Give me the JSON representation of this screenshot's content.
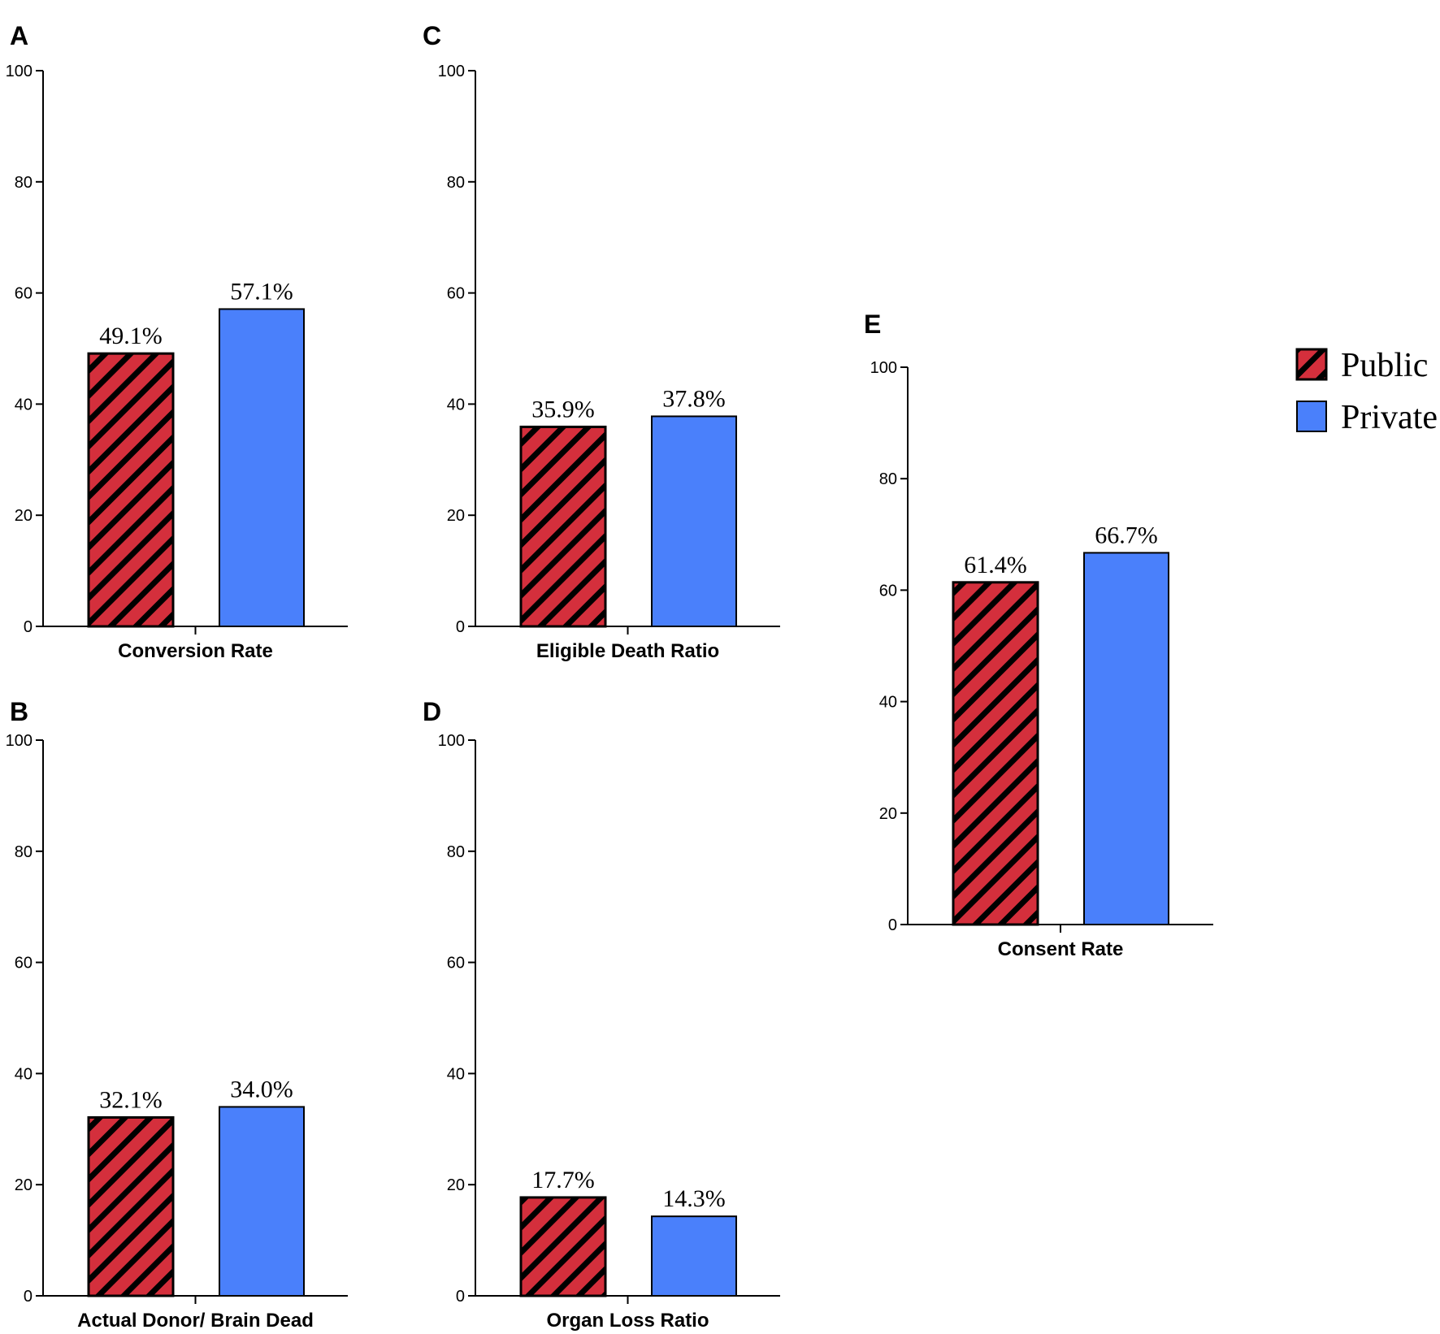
{
  "legend": {
    "items": [
      {
        "name": "Public",
        "pattern": "hatched",
        "color": "#d42f3c"
      },
      {
        "name": "Private",
        "pattern": "solid",
        "color": "#4a80fb"
      }
    ]
  },
  "chart_data": [
    {
      "panel": "A",
      "type": "bar",
      "xlabel": "Conversion Rate",
      "ylabel": "",
      "ylim": [
        0,
        100
      ],
      "yticks": [
        0,
        20,
        40,
        60,
        80,
        100
      ],
      "series": [
        {
          "name": "Public",
          "values": [
            49.1
          ],
          "label": "49.1%"
        },
        {
          "name": "Private",
          "values": [
            57.1
          ],
          "label": "57.1%"
        }
      ]
    },
    {
      "panel": "B",
      "type": "bar",
      "xlabel": "Actual Donor/ Brain Dead",
      "ylabel": "",
      "ylim": [
        0,
        100
      ],
      "yticks": [
        0,
        20,
        40,
        60,
        80,
        100
      ],
      "series": [
        {
          "name": "Public",
          "values": [
            32.1
          ],
          "label": "32.1%"
        },
        {
          "name": "Private",
          "values": [
            34.0
          ],
          "label": "34.0%"
        }
      ]
    },
    {
      "panel": "C",
      "type": "bar",
      "xlabel": "Eligible Death Ratio",
      "ylabel": "",
      "ylim": [
        0,
        100
      ],
      "yticks": [
        0,
        20,
        40,
        60,
        80,
        100
      ],
      "series": [
        {
          "name": "Public",
          "values": [
            35.9
          ],
          "label": "35.9%"
        },
        {
          "name": "Private",
          "values": [
            37.8
          ],
          "label": "37.8%"
        }
      ]
    },
    {
      "panel": "D",
      "type": "bar",
      "xlabel": "Organ Loss Ratio",
      "ylabel": "",
      "ylim": [
        0,
        100
      ],
      "yticks": [
        0,
        20,
        40,
        60,
        80,
        100
      ],
      "series": [
        {
          "name": "Public",
          "values": [
            17.7
          ],
          "label": "17.7%"
        },
        {
          "name": "Private",
          "values": [
            14.3
          ],
          "label": "14.3%"
        }
      ]
    },
    {
      "panel": "E",
      "type": "bar",
      "xlabel": "Consent Rate",
      "ylabel": "",
      "ylim": [
        0,
        100
      ],
      "yticks": [
        0,
        20,
        40,
        60,
        80,
        100
      ],
      "series": [
        {
          "name": "Public",
          "values": [
            61.4
          ],
          "label": "61.4%"
        },
        {
          "name": "Private",
          "values": [
            66.7
          ],
          "label": "66.7%"
        }
      ]
    }
  ]
}
